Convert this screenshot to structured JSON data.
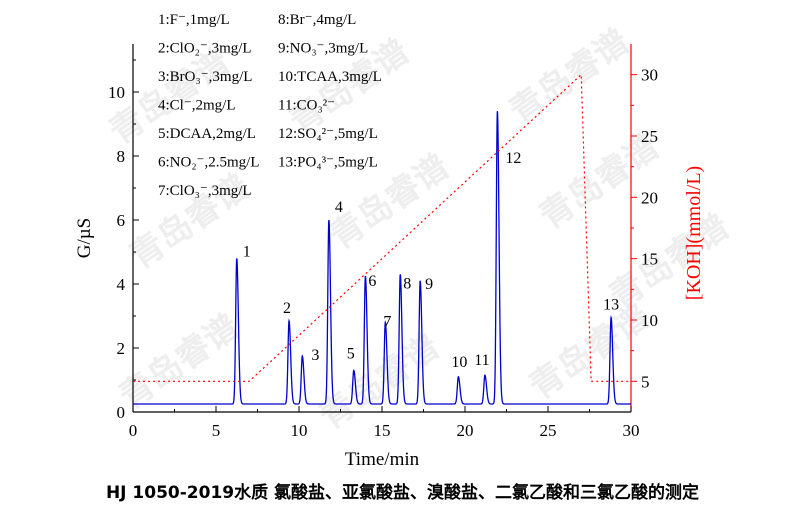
{
  "caption": "HJ 1050-2019水质 氯酸盐、亚氯酸盐、溴酸盐、二氯乙酸和三氯乙酸的测定",
  "chart_data": {
    "type": "line",
    "xlabel": "Time/min",
    "ylabel": "G/µS",
    "y2label": "[KOH](mmol/L)",
    "xlim": [
      0,
      30
    ],
    "ylim": [
      0,
      11.5
    ],
    "y2lim": [
      2.5,
      32.5
    ],
    "xticks": [
      "0",
      "5",
      "10",
      "15",
      "20",
      "25",
      "30"
    ],
    "yticks": [
      "0",
      "2",
      "4",
      "6",
      "8",
      "10"
    ],
    "y2ticks": [
      "5",
      "10",
      "15",
      "20",
      "25",
      "30"
    ],
    "series": [
      {
        "color": "#0000cc",
        "baseline": 0.25,
        "peaks": [
          {
            "label": "1",
            "t": 6.25,
            "height": 4.8
          },
          {
            "label": "2",
            "t": 9.4,
            "height": 2.85
          },
          {
            "label": "3",
            "t": 10.2,
            "height": 1.75
          },
          {
            "label": "4",
            "t": 11.8,
            "height": 6.0
          },
          {
            "label": "5",
            "t": 13.3,
            "height": 1.3
          },
          {
            "label": "6",
            "t": 14.0,
            "height": 4.25
          },
          {
            "label": "7",
            "t": 15.2,
            "height": 2.8
          },
          {
            "label": "8",
            "t": 16.1,
            "height": 4.3
          },
          {
            "label": "9",
            "t": 17.3,
            "height": 4.1
          },
          {
            "label": "10",
            "t": 19.6,
            "height": 1.1
          },
          {
            "label": "11",
            "t": 21.2,
            "height": 1.15
          },
          {
            "label": "12",
            "t": 21.95,
            "height": 9.4
          },
          {
            "label": "13",
            "t": 28.8,
            "height": 2.95
          }
        ]
      },
      {
        "color": "#ff0000",
        "style": "dotted",
        "axis": "right",
        "x": [
          0,
          7,
          27,
          27.6,
          30
        ],
        "y": [
          5,
          5,
          30,
          5,
          5
        ]
      }
    ],
    "annotations": {
      "left": [
        {
          "id": "1",
          "text": "1:F⁻,1mg/L"
        },
        {
          "id": "2",
          "text": "2:ClO₂⁻,3mg/L"
        },
        {
          "id": "3",
          "text": "3:BrO₃⁻,3mg/L"
        },
        {
          "id": "4",
          "text": "4:Cl⁻,2mg/L"
        },
        {
          "id": "5",
          "text": "5:DCAA,2mg/L"
        },
        {
          "id": "6",
          "text": "6:NO₂⁻,2.5mg/L"
        },
        {
          "id": "7",
          "text": "7:ClO₃⁻,3mg/L"
        }
      ],
      "right": [
        {
          "id": "8",
          "text": "8:Br⁻,4mg/L"
        },
        {
          "id": "9",
          "text": "9:NO₃⁻,3mg/L"
        },
        {
          "id": "10",
          "text": "10:TCAA,3mg/L"
        },
        {
          "id": "11",
          "text": "11:CO₃²⁻"
        },
        {
          "id": "12",
          "text": "12:SO₄²⁻,5mg/L"
        },
        {
          "id": "13",
          "text": "13:PO₄³⁻,5mg/L"
        }
      ]
    },
    "watermark": "青岛睿谱"
  }
}
